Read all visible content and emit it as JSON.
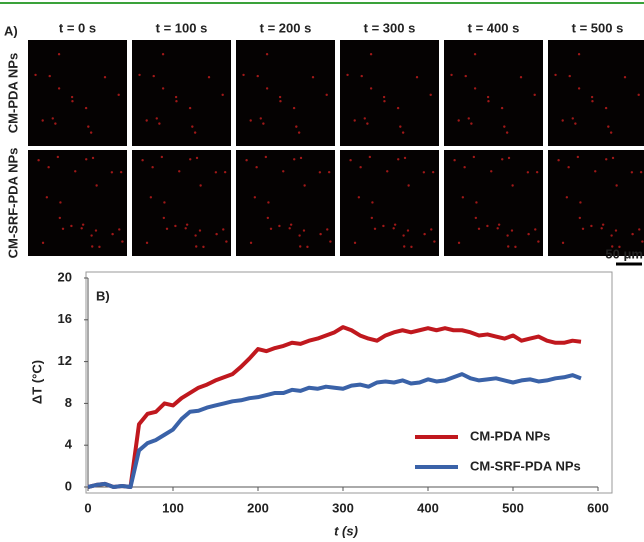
{
  "panel_a": {
    "label": "A)",
    "time_labels": [
      "t = 0 s",
      "t = 100 s",
      "t = 200 s",
      "t = 300 s",
      "t = 400 s",
      "t = 500 s"
    ],
    "row_labels": [
      "CM-PDA NPs",
      "CM-SRF-PDA NPs"
    ],
    "scale_bar": "50 μm"
  },
  "chart_data": {
    "type": "line",
    "panel_label": "B)",
    "x_label": "t (s)",
    "y_label": "ΔT (°C)",
    "xlim": [
      0,
      600
    ],
    "xticks": [
      0,
      100,
      200,
      300,
      400,
      500,
      600
    ],
    "ylim": [
      0,
      20
    ],
    "yticks": [
      0,
      4,
      8,
      12,
      16,
      20
    ],
    "legend": "lower right",
    "x": [
      0,
      10,
      20,
      30,
      40,
      50,
      60,
      70,
      80,
      90,
      100,
      110,
      120,
      130,
      140,
      150,
      160,
      170,
      180,
      190,
      200,
      210,
      220,
      230,
      240,
      250,
      260,
      270,
      280,
      290,
      300,
      310,
      320,
      330,
      340,
      350,
      360,
      370,
      380,
      390,
      400,
      410,
      420,
      430,
      440,
      450,
      460,
      470,
      480,
      490,
      500,
      510,
      520,
      530,
      540,
      550,
      560,
      570,
      580
    ],
    "series": [
      {
        "name": "CM-PDA NPs",
        "color": "#c0181e",
        "values": [
          0,
          0.2,
          0.3,
          0,
          0.1,
          0,
          6,
          7,
          7.2,
          8,
          7.8,
          8.5,
          9,
          9.5,
          9.8,
          10.2,
          10.5,
          10.8,
          11.5,
          12.3,
          13.2,
          13,
          13.3,
          13.5,
          13.8,
          13.7,
          14,
          14.2,
          14.5,
          14.8,
          15.3,
          15,
          14.5,
          14.2,
          14,
          14.5,
          14.8,
          15,
          14.8,
          15,
          15.2,
          15,
          15.2,
          15,
          15,
          14.8,
          14.5,
          14.6,
          14.4,
          14.2,
          14.5,
          14,
          14.2,
          14.4,
          14,
          13.8,
          13.8,
          14,
          13.9
        ]
      },
      {
        "name": "CM-SRF-PDA NPs",
        "color": "#3a62a8",
        "values": [
          0,
          0.2,
          0.3,
          0,
          0.1,
          0,
          3.5,
          4.2,
          4.5,
          5,
          5.5,
          6.5,
          7.2,
          7.3,
          7.6,
          7.8,
          8,
          8.2,
          8.3,
          8.5,
          8.6,
          8.8,
          9,
          9,
          9.3,
          9.2,
          9.5,
          9.4,
          9.6,
          9.5,
          9.4,
          9.7,
          9.8,
          9.6,
          10,
          10.1,
          10,
          10.2,
          9.9,
          10,
          10.3,
          10.1,
          10.2,
          10.5,
          10.8,
          10.4,
          10.2,
          10.3,
          10.4,
          10.2,
          10,
          10.2,
          10.3,
          10.1,
          10.2,
          10.4,
          10.5,
          10.7,
          10.4
        ]
      }
    ]
  }
}
